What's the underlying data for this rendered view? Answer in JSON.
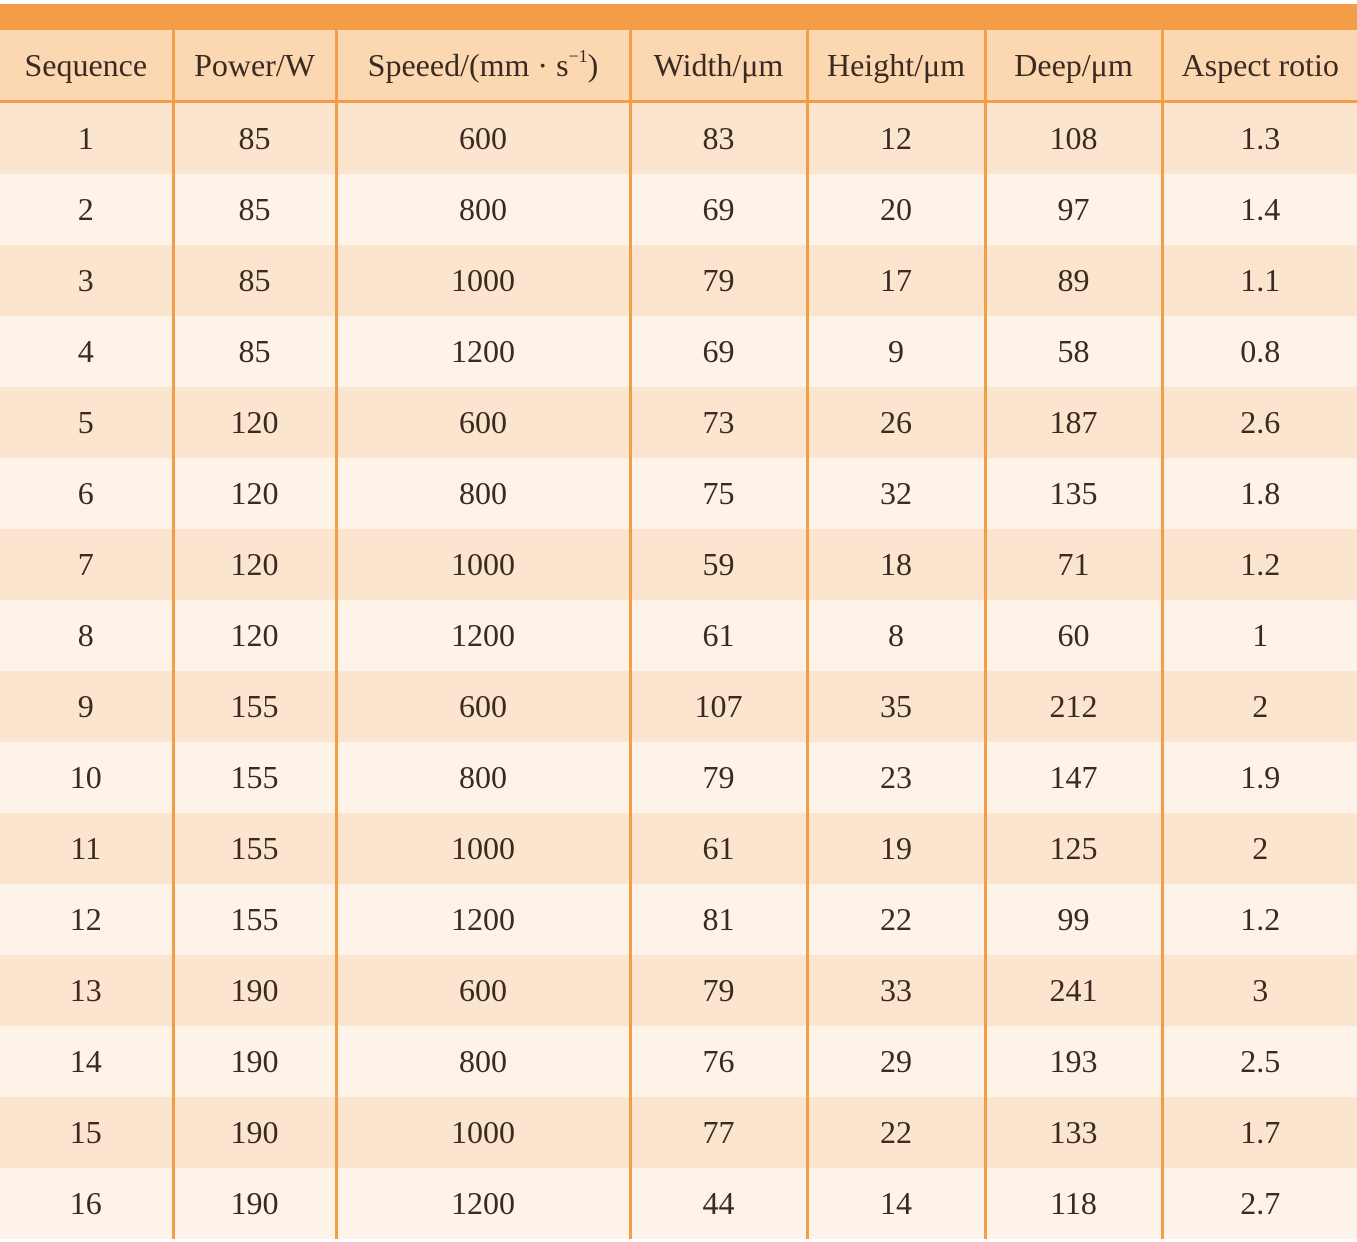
{
  "table": {
    "headers": [
      "Sequence",
      "Power/W",
      "Speeed/(mm · s",
      "Width/μm",
      "Height/μm",
      "Deep/μm",
      "Aspect rotio"
    ],
    "speed_header_exponent": "−1",
    "speed_header_close": ")",
    "rows": [
      [
        "1",
        "85",
        "600",
        "83",
        "12",
        "108",
        "1.3"
      ],
      [
        "2",
        "85",
        "800",
        "69",
        "20",
        "97",
        "1.4"
      ],
      [
        "3",
        "85",
        "1000",
        "79",
        "17",
        "89",
        "1.1"
      ],
      [
        "4",
        "85",
        "1200",
        "69",
        "9",
        "58",
        "0.8"
      ],
      [
        "5",
        "120",
        "600",
        "73",
        "26",
        "187",
        "2.6"
      ],
      [
        "6",
        "120",
        "800",
        "75",
        "32",
        "135",
        "1.8"
      ],
      [
        "7",
        "120",
        "1000",
        "59",
        "18",
        "71",
        "1.2"
      ],
      [
        "8",
        "120",
        "1200",
        "61",
        "8",
        "60",
        "1"
      ],
      [
        "9",
        "155",
        "600",
        "107",
        "35",
        "212",
        "2"
      ],
      [
        "10",
        "155",
        "800",
        "79",
        "23",
        "147",
        "1.9"
      ],
      [
        "11",
        "155",
        "1000",
        "61",
        "19",
        "125",
        "2"
      ],
      [
        "12",
        "155",
        "1200",
        "81",
        "22",
        "99",
        "1.2"
      ],
      [
        "13",
        "190",
        "600",
        "79",
        "33",
        "241",
        "3"
      ],
      [
        "14",
        "190",
        "800",
        "76",
        "29",
        "193",
        "2.5"
      ],
      [
        "15",
        "190",
        "1000",
        "77",
        "22",
        "133",
        "1.7"
      ],
      [
        "16",
        "190",
        "1200",
        "44",
        "14",
        "118",
        "2.7"
      ]
    ]
  },
  "colors": {
    "accent_orange": "#f49d47",
    "header_fill": "#fbd8b2",
    "row_fill_dark": "#fce5cf",
    "row_fill_light": "#fdf3e9"
  }
}
